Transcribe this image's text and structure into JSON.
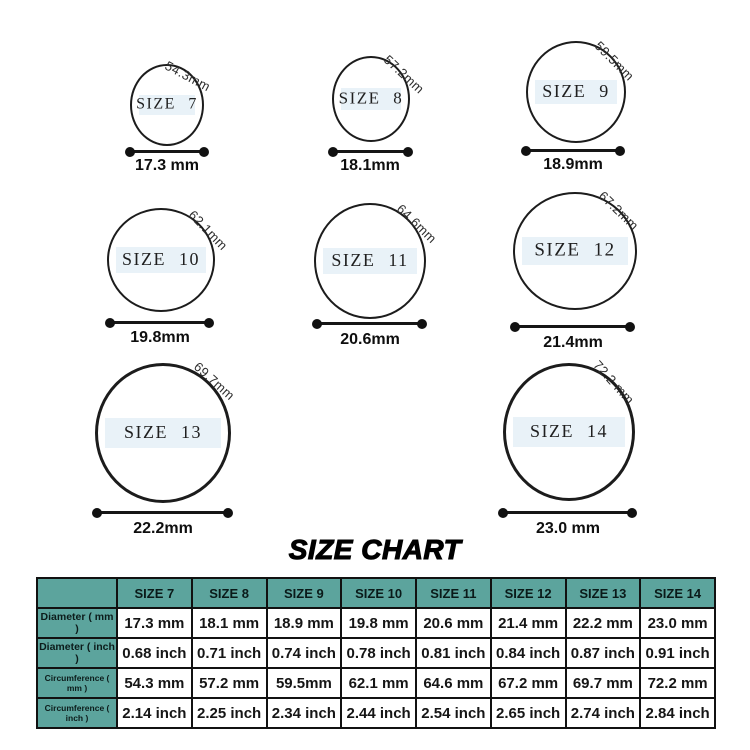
{
  "page": {
    "title": "SIZE CHART"
  },
  "colors": {
    "table_teal": "#5ca49d",
    "ring_band_blue": "#e9f2f8",
    "ink": "#111111"
  },
  "rings": [
    {
      "size_label": "SIZE 7",
      "circumference": "54.3mm",
      "diameter": "17.3 mm"
    },
    {
      "size_label": "SIZE 8",
      "circumference": "57.2mm",
      "diameter": "18.1mm"
    },
    {
      "size_label": "SIZE 9",
      "circumference": "59.5mm",
      "diameter": "18.9mm"
    },
    {
      "size_label": "SIZE 10",
      "circumference": "62.1mm",
      "diameter": "19.8mm"
    },
    {
      "size_label": "SIZE 11",
      "circumference": "64.6mm",
      "diameter": "20.6mm"
    },
    {
      "size_label": "SIZE 12",
      "circumference": "67.2mm",
      "diameter": "21.4mm"
    },
    {
      "size_label": "SIZE 13",
      "circumference": "69.7mm",
      "diameter": "22.2mm"
    },
    {
      "size_label": "SIZE 14",
      "circumference": "72.2 mm",
      "diameter": "23.0 mm"
    }
  ],
  "size_table": {
    "columns": [
      "",
      "SIZE 7",
      "SIZE 8",
      "SIZE 9",
      "SIZE 10",
      "SIZE 11",
      "SIZE 12",
      "SIZE 13",
      "SIZE 14"
    ],
    "rows": [
      {
        "label": "Diameter ( mm )",
        "values": [
          "17.3 mm",
          "18.1 mm",
          "18.9 mm",
          "19.8 mm",
          "20.6 mm",
          "21.4 mm",
          "22.2 mm",
          "23.0 mm"
        ]
      },
      {
        "label": "Diameter ( inch )",
        "values": [
          "0.68 inch",
          "0.71 inch",
          "0.74 inch",
          "0.78 inch",
          "0.81 inch",
          "0.84 inch",
          "0.87 inch",
          "0.91 inch"
        ]
      },
      {
        "label": "Circumference ( mm )",
        "values": [
          "54.3 mm",
          "57.2 mm",
          "59.5mm",
          "62.1 mm",
          "64.6 mm",
          "67.2 mm",
          "69.7 mm",
          "72.2 mm"
        ]
      },
      {
        "label": "Circumference ( inch )",
        "values": [
          "2.14 inch",
          "2.25 inch",
          "2.34 inch",
          "2.44 inch",
          "2.54 inch",
          "2.65 inch",
          "2.74 inch",
          "2.84 inch"
        ]
      }
    ]
  }
}
